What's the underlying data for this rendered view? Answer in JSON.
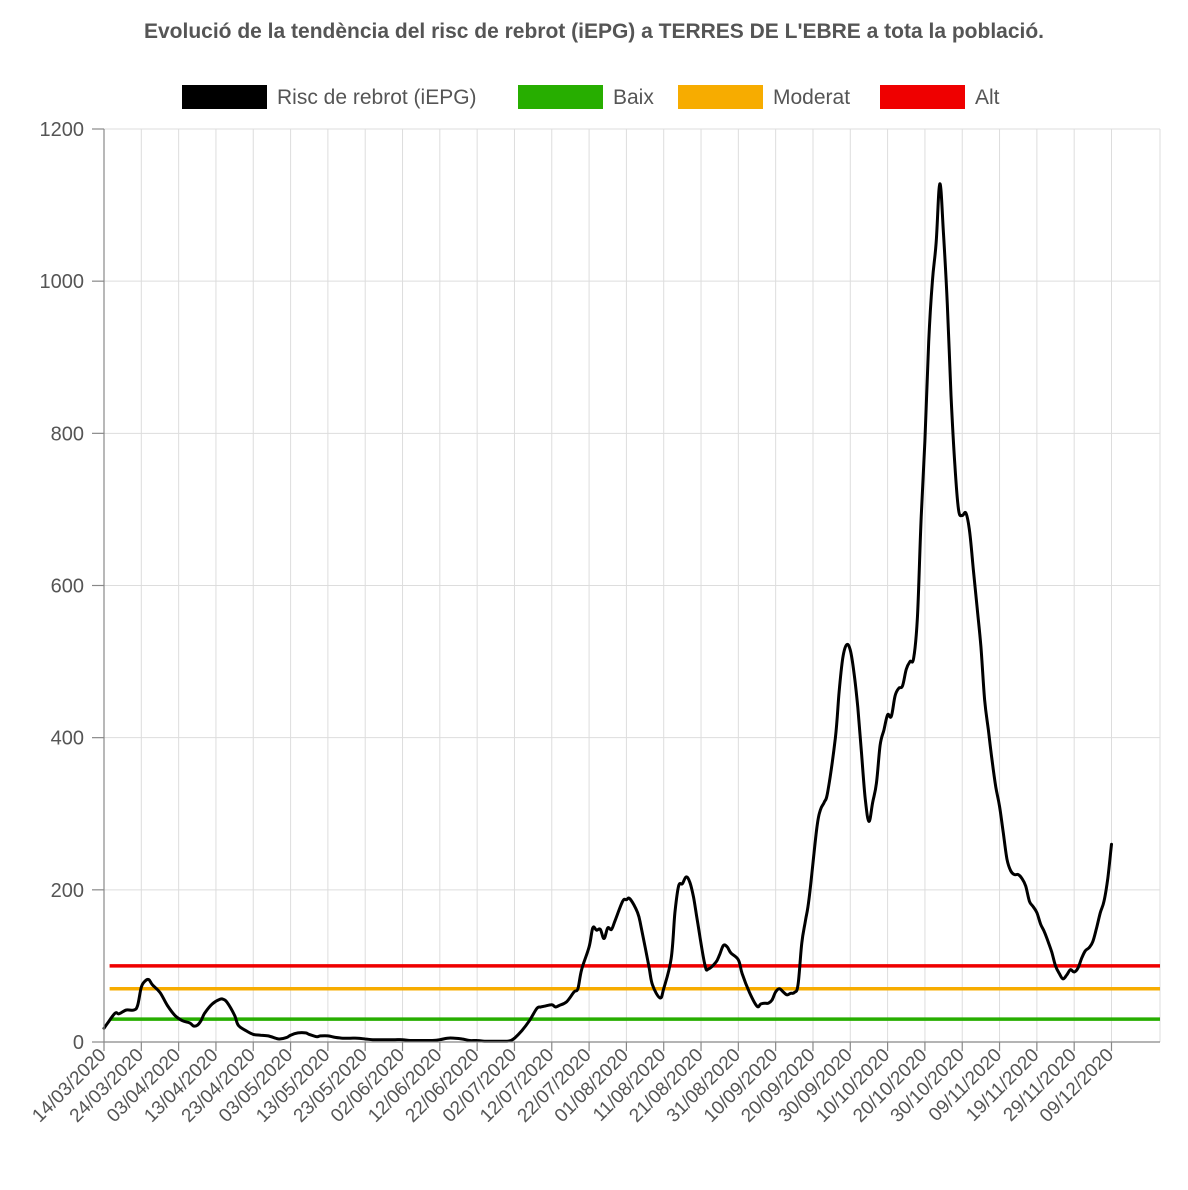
{
  "chart_data": {
    "type": "line",
    "title": "Evolució de la tendència del risc de rebrot (iEPG) a TERRES DE L'EBRE a tota la població.",
    "xlabel": "",
    "ylabel": "",
    "ylim": [
      0,
      1200
    ],
    "yticks": [
      0,
      200,
      400,
      600,
      800,
      1000,
      1200
    ],
    "x_range": [
      "14/03/2020",
      "22/12/2020"
    ],
    "x_tick_labels": [
      "14/03/2020",
      "24/03/2020",
      "03/04/2020",
      "13/04/2020",
      "23/04/2020",
      "03/05/2020",
      "13/05/2020",
      "23/05/2020",
      "02/06/2020",
      "12/06/2020",
      "22/06/2020",
      "02/07/2020",
      "12/07/2020",
      "22/07/2020",
      "01/08/2020",
      "11/08/2020",
      "21/08/2020",
      "31/08/2020",
      "10/09/2020",
      "20/09/2020",
      "30/09/2020",
      "10/10/2020",
      "20/10/2020",
      "30/10/2020",
      "09/11/2020",
      "19/11/2020",
      "29/11/2020",
      "09/12/2020"
    ],
    "grid": true,
    "legend_position": "top",
    "series": [
      {
        "name": "Risc de rebrot (iEPG)",
        "color": "#000000",
        "points": [
          [
            "14/03/2020",
            18
          ],
          [
            "15/03/2020",
            25
          ],
          [
            "17/03/2020",
            38
          ],
          [
            "18/03/2020",
            37
          ],
          [
            "20/03/2020",
            42
          ],
          [
            "22/03/2020",
            42
          ],
          [
            "23/03/2020",
            48
          ],
          [
            "24/03/2020",
            72
          ],
          [
            "25/03/2020",
            80
          ],
          [
            "26/03/2020",
            82
          ],
          [
            "27/03/2020",
            75
          ],
          [
            "29/03/2020",
            65
          ],
          [
            "31/03/2020",
            48
          ],
          [
            "02/04/2020",
            35
          ],
          [
            "04/04/2020",
            28
          ],
          [
            "06/04/2020",
            25
          ],
          [
            "07/04/2020",
            21
          ],
          [
            "08/04/2020",
            22
          ],
          [
            "09/04/2020",
            28
          ],
          [
            "10/04/2020",
            38
          ],
          [
            "12/04/2020",
            50
          ],
          [
            "14/04/2020",
            56
          ],
          [
            "15/04/2020",
            56
          ],
          [
            "16/04/2020",
            52
          ],
          [
            "18/04/2020",
            35
          ],
          [
            "19/04/2020",
            22
          ],
          [
            "21/04/2020",
            15
          ],
          [
            "23/04/2020",
            10
          ],
          [
            "25/04/2020",
            9
          ],
          [
            "27/04/2020",
            8
          ],
          [
            "29/04/2020",
            5
          ],
          [
            "30/04/2020",
            4
          ],
          [
            "02/05/2020",
            6
          ],
          [
            "03/05/2020",
            9
          ],
          [
            "05/05/2020",
            12
          ],
          [
            "07/05/2020",
            12
          ],
          [
            "08/05/2020",
            10
          ],
          [
            "10/05/2020",
            7
          ],
          [
            "11/05/2020",
            8
          ],
          [
            "13/05/2020",
            8
          ],
          [
            "15/05/2020",
            6
          ],
          [
            "17/05/2020",
            5
          ],
          [
            "19/05/2020",
            5
          ],
          [
            "21/05/2020",
            5
          ],
          [
            "23/05/2020",
            4
          ],
          [
            "25/05/2020",
            3
          ],
          [
            "27/05/2020",
            3
          ],
          [
            "29/05/2020",
            3
          ],
          [
            "31/05/2020",
            3
          ],
          [
            "02/06/2020",
            3
          ],
          [
            "04/06/2020",
            2
          ],
          [
            "06/06/2020",
            2
          ],
          [
            "08/06/2020",
            2
          ],
          [
            "10/06/2020",
            2
          ],
          [
            "12/06/2020",
            3
          ],
          [
            "14/06/2020",
            5
          ],
          [
            "16/06/2020",
            5
          ],
          [
            "18/06/2020",
            4
          ],
          [
            "20/06/2020",
            2
          ],
          [
            "22/06/2020",
            2
          ],
          [
            "24/06/2020",
            1
          ],
          [
            "26/06/2020",
            1
          ],
          [
            "28/06/2020",
            1
          ],
          [
            "30/06/2020",
            1
          ],
          [
            "01/07/2020",
            2
          ],
          [
            "02/07/2020",
            5
          ],
          [
            "04/07/2020",
            15
          ],
          [
            "06/07/2020",
            28
          ],
          [
            "08/07/2020",
            44
          ],
          [
            "09/07/2020",
            46
          ],
          [
            "10/07/2020",
            47
          ],
          [
            "12/07/2020",
            49
          ],
          [
            "13/07/2020",
            46
          ],
          [
            "14/07/2020",
            48
          ],
          [
            "16/07/2020",
            53
          ],
          [
            "18/07/2020",
            66
          ],
          [
            "19/07/2020",
            70
          ],
          [
            "20/07/2020",
            95
          ],
          [
            "22/07/2020",
            125
          ],
          [
            "23/07/2020",
            150
          ],
          [
            "24/07/2020",
            147
          ],
          [
            "25/07/2020",
            148
          ],
          [
            "26/07/2020",
            136
          ],
          [
            "27/07/2020",
            150
          ],
          [
            "28/07/2020",
            148
          ],
          [
            "29/07/2020",
            160
          ],
          [
            "31/07/2020",
            185
          ],
          [
            "01/08/2020",
            187
          ],
          [
            "02/08/2020",
            188
          ],
          [
            "04/08/2020",
            170
          ],
          [
            "05/08/2020",
            150
          ],
          [
            "07/08/2020",
            100
          ],
          [
            "08/08/2020",
            75
          ],
          [
            "10/08/2020",
            58
          ],
          [
            "11/08/2020",
            70
          ],
          [
            "13/08/2020",
            110
          ],
          [
            "14/08/2020",
            170
          ],
          [
            "15/08/2020",
            205
          ],
          [
            "16/08/2020",
            208
          ],
          [
            "17/08/2020",
            217
          ],
          [
            "18/08/2020",
            210
          ],
          [
            "19/08/2020",
            190
          ],
          [
            "20/08/2020",
            160
          ],
          [
            "22/08/2020",
            102
          ],
          [
            "23/08/2020",
            96
          ],
          [
            "25/08/2020",
            105
          ],
          [
            "26/08/2020",
            115
          ],
          [
            "27/08/2020",
            127
          ],
          [
            "28/08/2020",
            125
          ],
          [
            "29/08/2020",
            117
          ],
          [
            "31/08/2020",
            108
          ],
          [
            "01/09/2020",
            90
          ],
          [
            "03/09/2020",
            65
          ],
          [
            "05/09/2020",
            47
          ],
          [
            "06/09/2020",
            50
          ],
          [
            "07/09/2020",
            51
          ],
          [
            "08/09/2020",
            51
          ],
          [
            "09/09/2020",
            55
          ],
          [
            "10/09/2020",
            66
          ],
          [
            "11/09/2020",
            70
          ],
          [
            "12/09/2020",
            66
          ],
          [
            "13/09/2020",
            62
          ],
          [
            "14/09/2020",
            64
          ],
          [
            "15/09/2020",
            65
          ],
          [
            "16/09/2020",
            75
          ],
          [
            "17/09/2020",
            130
          ],
          [
            "18/09/2020",
            160
          ],
          [
            "19/09/2020",
            190
          ],
          [
            "21/09/2020",
            280
          ],
          [
            "22/09/2020",
            305
          ],
          [
            "23/09/2020",
            315
          ],
          [
            "24/09/2020",
            330
          ],
          [
            "26/09/2020",
            400
          ],
          [
            "27/09/2020",
            460
          ],
          [
            "28/09/2020",
            505
          ],
          [
            "29/09/2020",
            522
          ],
          [
            "30/09/2020",
            515
          ],
          [
            "01/10/2020",
            485
          ],
          [
            "02/10/2020",
            440
          ],
          [
            "03/10/2020",
            380
          ],
          [
            "04/10/2020",
            320
          ],
          [
            "05/10/2020",
            290
          ],
          [
            "06/10/2020",
            315
          ],
          [
            "07/10/2020",
            340
          ],
          [
            "08/10/2020",
            390
          ],
          [
            "09/10/2020",
            410
          ],
          [
            "10/10/2020",
            430
          ],
          [
            "11/10/2020",
            428
          ],
          [
            "12/10/2020",
            455
          ],
          [
            "13/10/2020",
            465
          ],
          [
            "14/10/2020",
            468
          ],
          [
            "15/10/2020",
            490
          ],
          [
            "16/10/2020",
            500
          ],
          [
            "17/10/2020",
            505
          ],
          [
            "18/10/2020",
            560
          ],
          [
            "19/10/2020",
            690
          ],
          [
            "20/10/2020",
            790
          ],
          [
            "21/10/2020",
            920
          ],
          [
            "22/10/2020",
            1000
          ],
          [
            "23/10/2020",
            1050
          ],
          [
            "24/10/2020",
            1128
          ],
          [
            "25/10/2020",
            1060
          ],
          [
            "26/10/2020",
            970
          ],
          [
            "27/10/2020",
            850
          ],
          [
            "28/10/2020",
            760
          ],
          [
            "29/10/2020",
            700
          ],
          [
            "30/10/2020",
            692
          ],
          [
            "31/10/2020",
            695
          ],
          [
            "01/11/2020",
            670
          ],
          [
            "02/11/2020",
            620
          ],
          [
            "03/11/2020",
            570
          ],
          [
            "04/11/2020",
            520
          ],
          [
            "05/11/2020",
            450
          ],
          [
            "06/11/2020",
            410
          ],
          [
            "07/11/2020",
            370
          ],
          [
            "08/11/2020",
            335
          ],
          [
            "09/11/2020",
            310
          ],
          [
            "10/11/2020",
            275
          ],
          [
            "11/11/2020",
            240
          ],
          [
            "12/11/2020",
            225
          ],
          [
            "13/11/2020",
            220
          ],
          [
            "14/11/2020",
            220
          ],
          [
            "15/11/2020",
            215
          ],
          [
            "16/11/2020",
            205
          ],
          [
            "17/11/2020",
            185
          ],
          [
            "18/11/2020",
            178
          ],
          [
            "19/11/2020",
            170
          ],
          [
            "20/11/2020",
            155
          ],
          [
            "21/11/2020",
            145
          ],
          [
            "22/11/2020",
            132
          ],
          [
            "23/11/2020",
            118
          ],
          [
            "24/11/2020",
            100
          ],
          [
            "25/11/2020",
            90
          ],
          [
            "26/11/2020",
            83
          ],
          [
            "27/11/2020",
            88
          ],
          [
            "28/11/2020",
            95
          ],
          [
            "29/11/2020",
            92
          ],
          [
            "30/11/2020",
            97
          ],
          [
            "01/12/2020",
            110
          ],
          [
            "02/12/2020",
            120
          ],
          [
            "03/12/2020",
            124
          ],
          [
            "04/12/2020",
            132
          ],
          [
            "05/12/2020",
            150
          ],
          [
            "06/12/2020",
            170
          ],
          [
            "07/12/2020",
            185
          ],
          [
            "08/12/2020",
            215
          ],
          [
            "09/12/2020",
            260
          ]
        ]
      },
      {
        "name": "Baix",
        "color": "#27ae00",
        "constant": 30
      },
      {
        "name": "Moderat",
        "color": "#f7ac00",
        "constant": 70
      },
      {
        "name": "Alt",
        "color": "#ef0000",
        "constant": 100
      }
    ]
  }
}
